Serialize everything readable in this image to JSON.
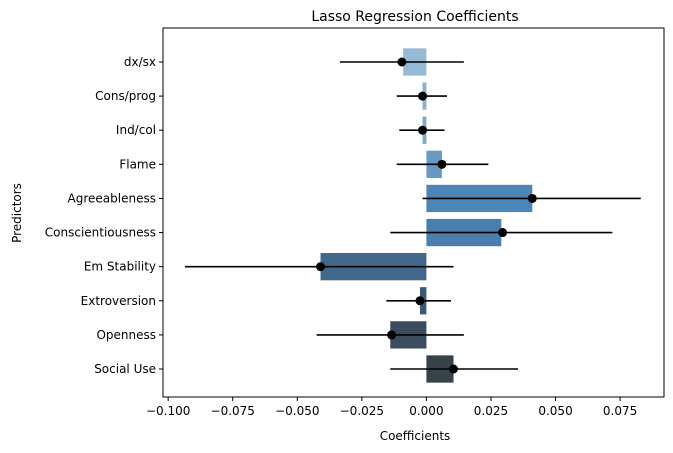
{
  "chart_data": {
    "type": "bar",
    "orientation": "horizontal",
    "title": "Lasso Regression Coefficients",
    "xlabel": "Coefficients",
    "ylabel": "Predictors",
    "xlim": [
      -0.102,
      0.092
    ],
    "grid": false,
    "categories": [
      "dx/sx",
      "Cons/prog",
      "Ind/col",
      "Flame",
      "Agreeableness",
      "Conscientiousness",
      "Em Stability",
      "Extroversion",
      "Openness",
      "Social Use"
    ],
    "values": [
      -0.009,
      -0.0015,
      -0.0015,
      0.006,
      0.041,
      0.029,
      -0.041,
      -0.0025,
      -0.014,
      0.0105
    ],
    "points": [
      -0.0095,
      -0.0015,
      -0.0015,
      0.006,
      0.041,
      0.0295,
      -0.041,
      -0.0025,
      -0.0135,
      0.0105
    ],
    "error_low": [
      -0.0335,
      -0.0115,
      -0.0105,
      -0.0115,
      -0.0015,
      -0.014,
      -0.0935,
      -0.0155,
      -0.0425,
      -0.014
    ],
    "error_high": [
      0.0145,
      0.008,
      0.007,
      0.024,
      0.083,
      0.072,
      0.0105,
      0.0095,
      0.0145,
      0.0355
    ],
    "bar_colors": [
      "#95bad6",
      "#88b1d2",
      "#7ea8ca",
      "#6699c3",
      "#4c86b7",
      "#4a7fad",
      "#41688a",
      "#3d5a74",
      "#3b4c5e",
      "#384249"
    ],
    "xticks": [
      -0.1,
      -0.075,
      -0.05,
      -0.025,
      0.0,
      0.025,
      0.05,
      0.075
    ],
    "xtick_labels": [
      "−0.100",
      "−0.075",
      "−0.050",
      "−0.025",
      "0.000",
      "0.025",
      "0.050",
      "0.075"
    ]
  }
}
